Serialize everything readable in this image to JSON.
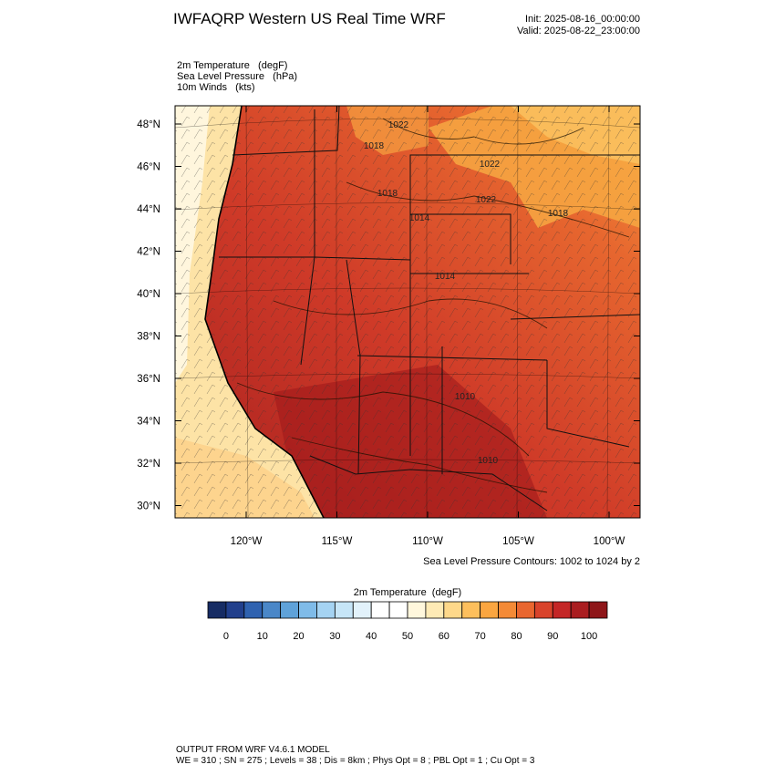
{
  "header": {
    "title": "IWFAQRP Western US Real Time WRF",
    "init": "Init: 2025-08-16_00:00:00",
    "valid": "Valid: 2025-08-22_23:00:00",
    "fields": [
      "2m Temperature   (degF)",
      "Sea Level Pressure   (hPa)",
      "10m Winds   (kts)"
    ]
  },
  "map": {
    "lat_ticks": [
      "48°N",
      "46°N",
      "44°N",
      "42°N",
      "40°N",
      "38°N",
      "36°N",
      "34°N",
      "32°N",
      "30°N"
    ],
    "lon_ticks": [
      "120°W",
      "115°W",
      "110°W",
      "105°W",
      "100°W"
    ],
    "contour_labels": [
      "1022",
      "1018",
      "1018",
      "1022",
      "1022",
      "1018",
      "1014",
      "1014",
      "1010",
      "1010"
    ],
    "contour_note": "Sea Level Pressure Contours: 1002 to 1024 by 2"
  },
  "colorbar": {
    "title": "2m Temperature  (degF)",
    "colors": [
      "#162c64",
      "#213f8c",
      "#2f62b0",
      "#4a87c8",
      "#5fa2d9",
      "#7fbbe8",
      "#a5d3f2",
      "#c6e5f7",
      "#e2f2fb",
      "#ffffff",
      "#ffffff",
      "#fff7dc",
      "#feeab5",
      "#fed88a",
      "#fdbf5c",
      "#fba640",
      "#f48a36",
      "#e9662f",
      "#d9432b",
      "#c42626",
      "#aa1d20",
      "#8e1518"
    ],
    "labels": [
      0,
      10,
      20,
      30,
      40,
      50,
      60,
      70,
      80,
      90,
      100
    ]
  },
  "footer": {
    "line1": "OUTPUT FROM WRF V4.6.1 MODEL",
    "line2": "WE = 310 ; SN = 275 ; Levels = 38 ; Dis = 8km ; Phys Opt = 8 ; PBL Opt = 1 ; Cu Opt = 3"
  }
}
